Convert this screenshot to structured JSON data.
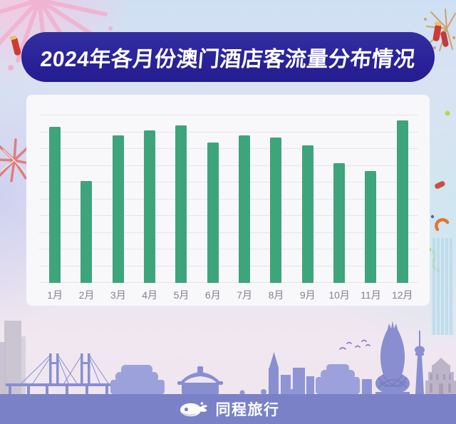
{
  "banner": {
    "bg_color": "#2A229A",
    "text_color": "#FFFFFF"
  },
  "chart_data": {
    "type": "bar",
    "title": "2024年各月份澳门酒店客流量分布情况",
    "categories": [
      "1月",
      "2月",
      "3月",
      "4月",
      "5月",
      "6月",
      "7月",
      "8月",
      "9月",
      "10月",
      "11月",
      "12月"
    ],
    "values": [
      93,
      61,
      88,
      91,
      94,
      84,
      88,
      87,
      82,
      71.5,
      67,
      97
    ],
    "value_note": "relative index estimated from gridlines; no y-axis labels shown",
    "xlabel": "",
    "ylabel": "",
    "ylim": [
      0,
      100
    ],
    "gridline_count": 11,
    "grid": "horizontal",
    "legend": "none",
    "y_axis_labels_visible": false,
    "bar_color": "#3EA47B",
    "panel_color": "#F8F8FB",
    "gridline_color": "#E4E4EC",
    "axis_label_color": "#81818F"
  },
  "footer": {
    "brand": "同程旅行",
    "bg_color": "#7A81C6",
    "logo": "tongcheng-whale-logo"
  },
  "decorations": {
    "fireworks": [
      {
        "name": "pink-firework-top-left",
        "color": "#F2AFCE"
      },
      {
        "name": "gold-firework-top-right",
        "color": "#C9A469"
      },
      {
        "name": "red-firework-left",
        "color": "#DF7E7E"
      },
      {
        "name": "red-firecracker-right",
        "color": "#D03A33"
      },
      {
        "name": "red-firecracker-left",
        "color": "#D03A33"
      }
    ],
    "confetti": [
      {
        "name": "yellow-green-dot",
        "color": "#BBD44F"
      },
      {
        "name": "red-bean",
        "color": "#C94F43"
      },
      {
        "name": "blue-dot",
        "color": "#4A66B0"
      },
      {
        "name": "orange-crescent",
        "color": "#E0762F"
      },
      {
        "name": "green-ribbon",
        "color": "#B5D45C"
      }
    ],
    "silhouettes": [
      {
        "name": "macau-skyline-silhouette",
        "color": "#898ED1"
      },
      {
        "name": "city-buildings-left",
        "color": "#CBC5D2"
      },
      {
        "name": "blue-tower-right",
        "color": "#B7D8E9"
      }
    ]
  }
}
